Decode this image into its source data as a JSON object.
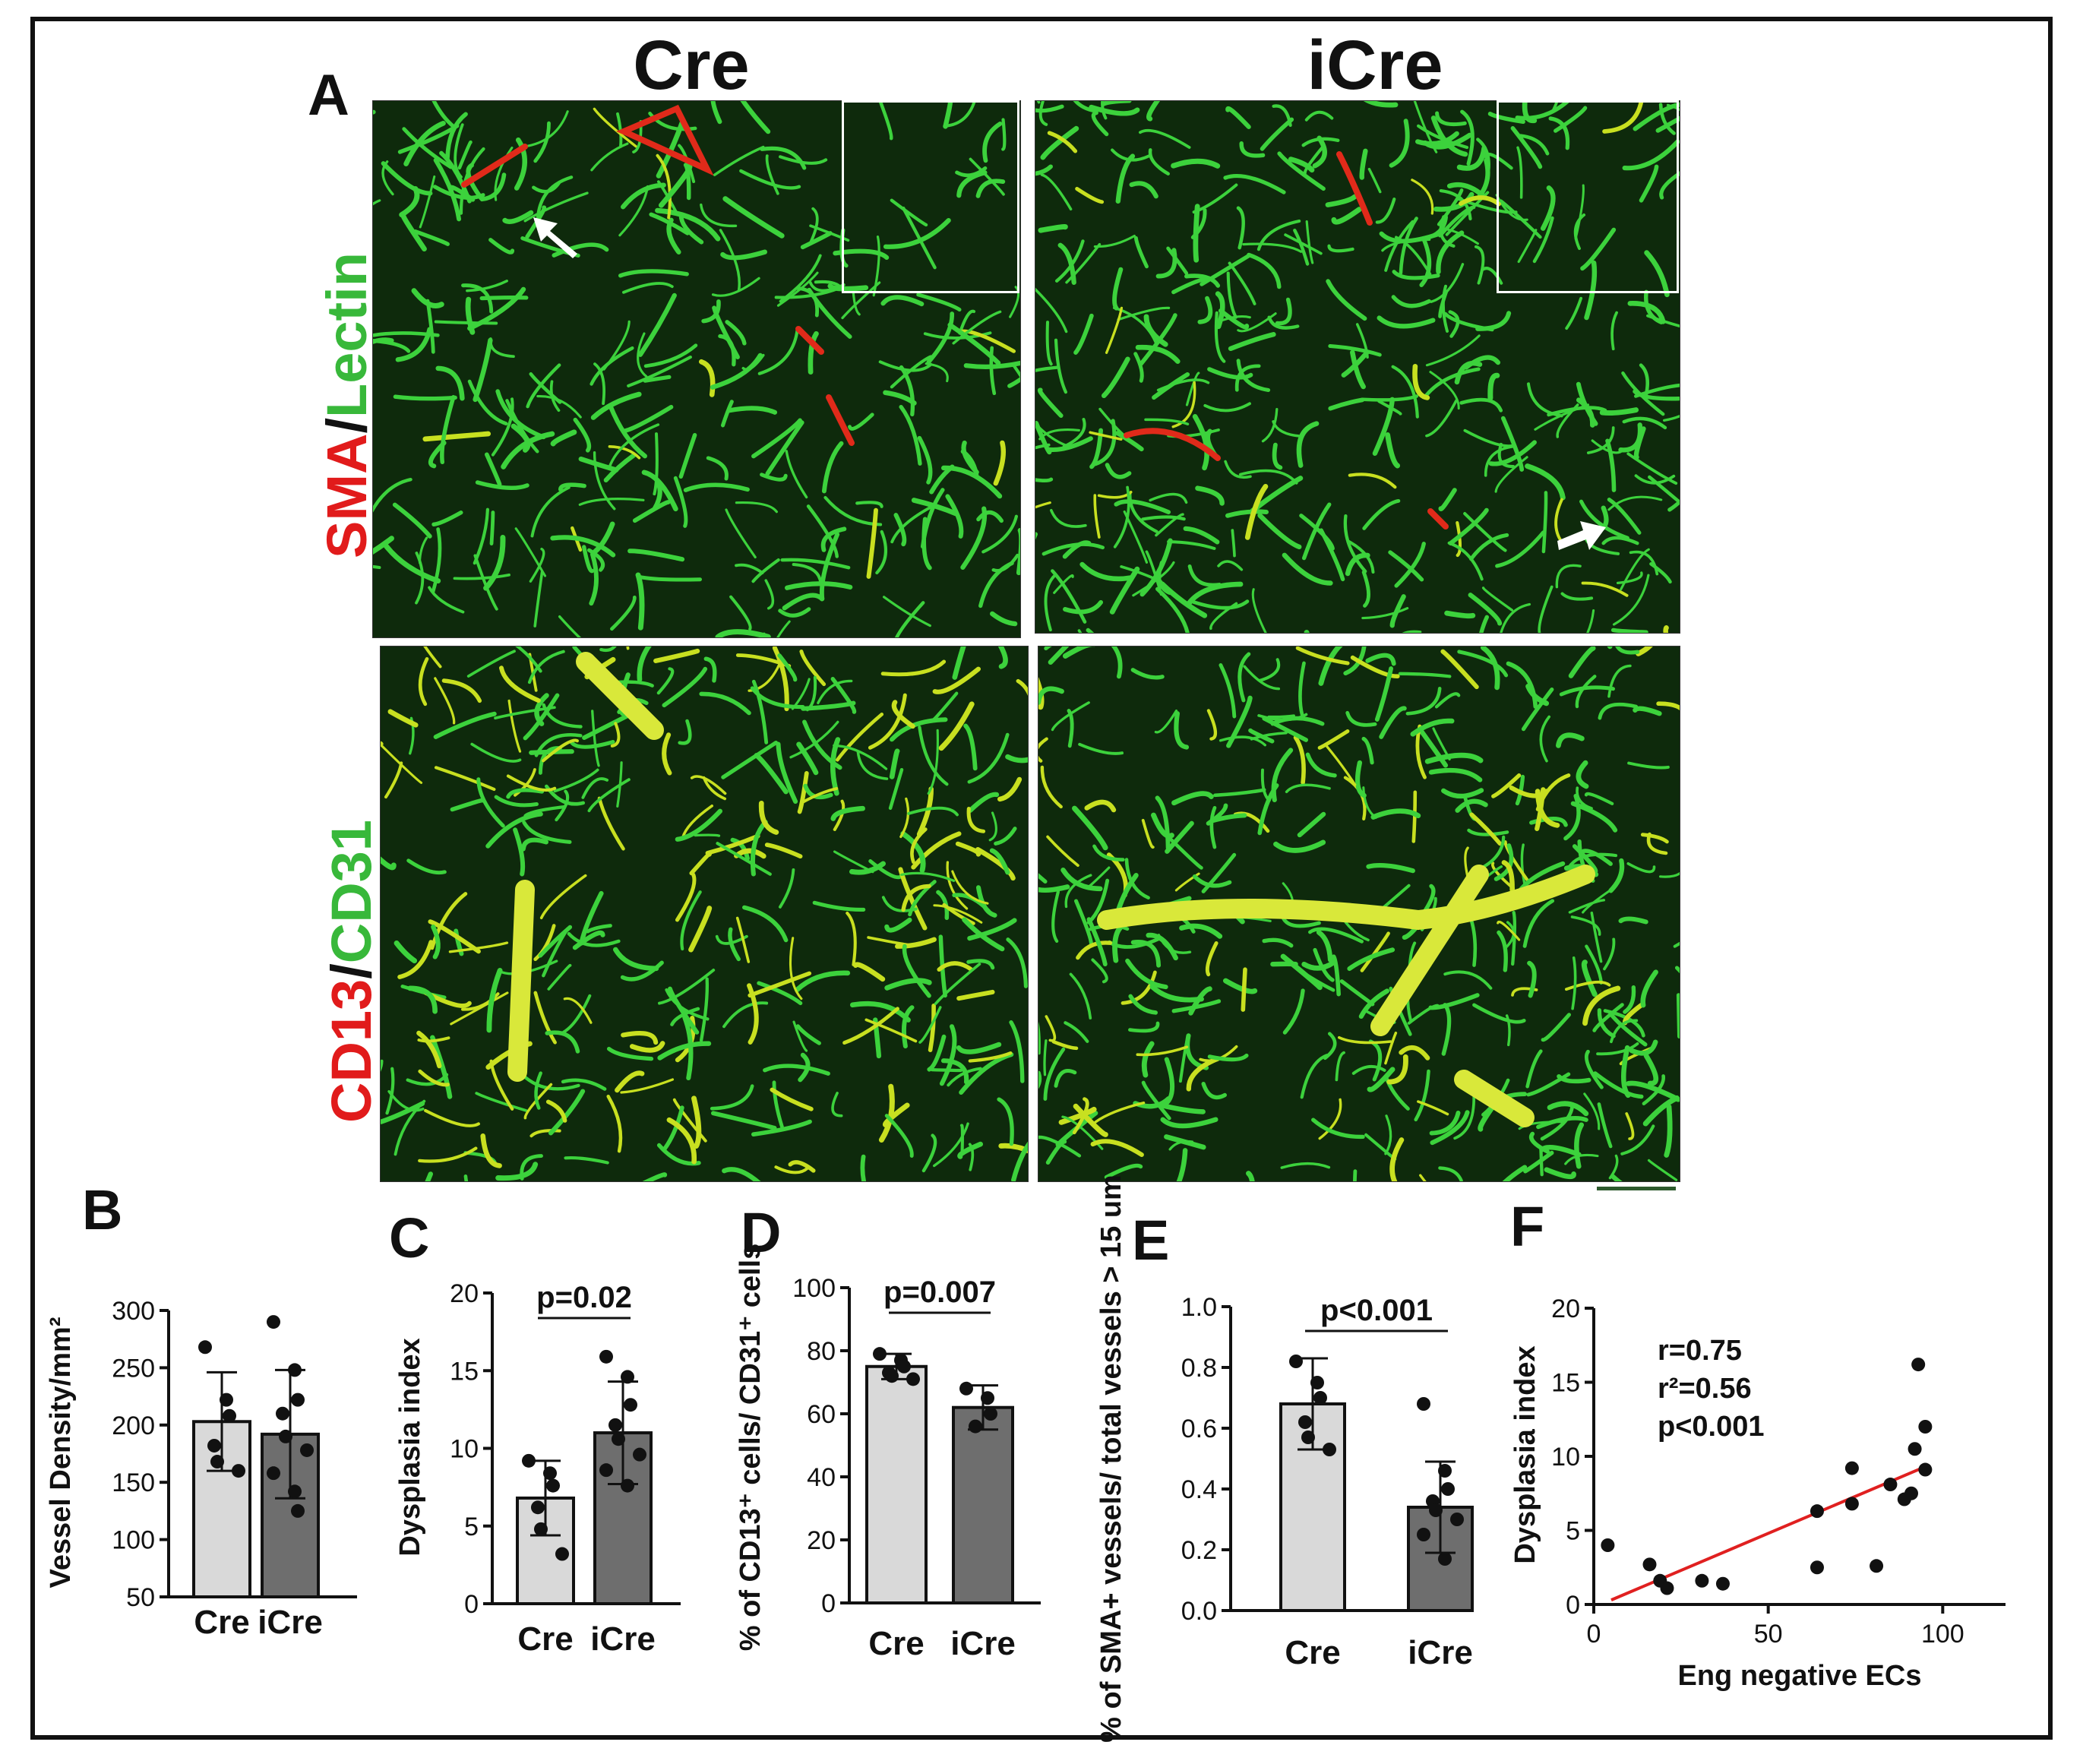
{
  "panelA": {
    "letter": "A",
    "col_titles": [
      "Cre",
      "iCre"
    ],
    "row1_label": {
      "part1": "SMA",
      "sep": "/",
      "part2": "Lectin"
    },
    "row2_label": {
      "part1": "CD13",
      "sep": "/",
      "part2": "CD31"
    },
    "colors": {
      "red": "#e11b1b",
      "green": "#38b83a"
    }
  },
  "chart_data": [
    {
      "panel": "B",
      "type": "bar",
      "categories": [
        "Cre",
        "iCre"
      ],
      "values": [
        203,
        192
      ],
      "sd": [
        43,
        56
      ],
      "ylabel": "Vessel Density/mm²",
      "yticks": [
        "300",
        "250",
        "200",
        "150",
        "100",
        "50"
      ],
      "ylim": [
        50,
        300
      ],
      "points": [
        [
          268,
          222,
          208,
          182,
          168,
          160
        ],
        [
          290,
          248,
          222,
          210,
          190,
          178,
          158,
          142,
          125
        ]
      ],
      "bar_colors": [
        "#d9d9d9",
        "#6e6e6e"
      ]
    },
    {
      "panel": "C",
      "type": "bar",
      "categories": [
        "Cre",
        "iCre"
      ],
      "values": [
        6.8,
        11.0
      ],
      "sd": [
        2.4,
        3.3
      ],
      "ylabel": "Dysplasia index",
      "yticks": [
        "20",
        "15",
        "10",
        "5",
        "0"
      ],
      "ylim": [
        0,
        20
      ],
      "annotation": "p=0.02",
      "points": [
        [
          9.2,
          8.4,
          7.6,
          6.2,
          4.8,
          3.2
        ],
        [
          15.9,
          14.6,
          12.8,
          11.5,
          10.6,
          9.6,
          8.6,
          7.6
        ]
      ],
      "bar_colors": [
        "#d9d9d9",
        "#6e6e6e"
      ]
    },
    {
      "panel": "D",
      "type": "bar",
      "categories": [
        "Cre",
        "iCre"
      ],
      "values": [
        75,
        62
      ],
      "sd": [
        4,
        7
      ],
      "ylabel": "% of CD13⁺ cells/ CD31⁺ cells",
      "yticks": [
        "100",
        "80",
        "60",
        "40",
        "20",
        "0"
      ],
      "ylim": [
        0,
        100
      ],
      "annotation": "p=0.007",
      "points": [
        [
          79,
          77,
          75,
          73,
          72,
          71
        ],
        [
          68,
          65,
          60,
          56
        ]
      ],
      "bar_colors": [
        "#d9d9d9",
        "#6e6e6e"
      ]
    },
    {
      "panel": "E",
      "type": "bar",
      "categories": [
        "Cre",
        "iCre"
      ],
      "values": [
        0.68,
        0.34
      ],
      "sd": [
        0.15,
        0.15
      ],
      "ylabel": "% of SMA+ vessels/ total vessels > 15 um",
      "yticks": [
        "1.0",
        "0.8",
        "0.6",
        "0.4",
        "0.2",
        "0.0"
      ],
      "ylim": [
        0.0,
        1.0
      ],
      "annotation": "p<0.001",
      "points": [
        [
          0.82,
          0.75,
          0.7,
          0.62,
          0.57,
          0.53
        ],
        [
          0.68,
          0.46,
          0.4,
          0.36,
          0.33,
          0.3,
          0.25,
          0.17
        ]
      ],
      "bar_colors": [
        "#d9d9d9",
        "#6e6e6e"
      ]
    },
    {
      "panel": "F",
      "type": "scatter",
      "xlabel": "Eng negative ECs",
      "ylabel": "Dysplasia index",
      "xticks": [
        "0",
        "50",
        "100"
      ],
      "yticks": [
        "20",
        "15",
        "10",
        "5",
        "0"
      ],
      "xlim": [
        0,
        118
      ],
      "ylim": [
        0,
        20
      ],
      "stats": [
        "r=0.75",
        "r²=0.56",
        "p<0.001"
      ],
      "points": [
        [
          4,
          4.0
        ],
        [
          16,
          2.7
        ],
        [
          19,
          1.6
        ],
        [
          21,
          1.1
        ],
        [
          31,
          1.6
        ],
        [
          37,
          1.4
        ],
        [
          64,
          6.3
        ],
        [
          64,
          2.5
        ],
        [
          74,
          9.2
        ],
        [
          74,
          6.8
        ],
        [
          81,
          2.6
        ],
        [
          85,
          8.1
        ],
        [
          89,
          7.1
        ],
        [
          91,
          7.5
        ],
        [
          92,
          10.5
        ],
        [
          93,
          16.2
        ],
        [
          95,
          12.0
        ],
        [
          95,
          9.1
        ]
      ],
      "fit": [
        [
          5,
          0.3
        ],
        [
          96,
          9.4
        ]
      ],
      "fit_color": "#e02020"
    }
  ]
}
